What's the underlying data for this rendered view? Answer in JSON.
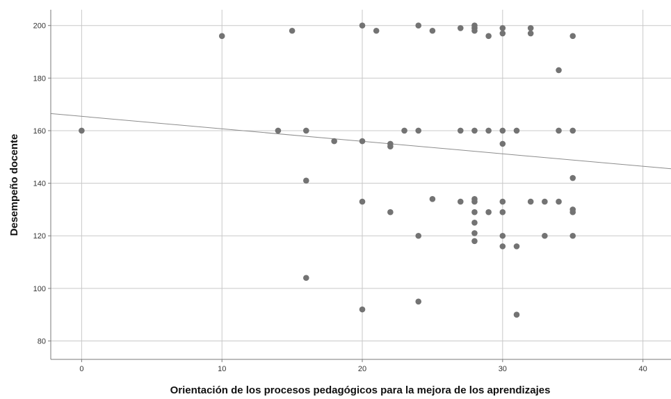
{
  "chart_data": {
    "type": "scatter",
    "title": "",
    "xlabel": "Orientación de los procesos pedagógicos para la mejora de los aprendizajes",
    "ylabel": "Desempeño docente",
    "xlim": [
      -2.2,
      42
    ],
    "ylim": [
      73,
      206
    ],
    "xticks": [
      0,
      10,
      20,
      30,
      40
    ],
    "yticks": [
      80,
      100,
      120,
      140,
      160,
      180,
      200
    ],
    "grid": true,
    "legend": "none",
    "colors": {
      "point": "#737373",
      "grid": "#c8c8c8",
      "line": "#8c8c8c",
      "axis": "#7a7a7a"
    },
    "fit_line": {
      "x": [
        -2.2,
        42
      ],
      "y": [
        166.5,
        145.5
      ]
    },
    "points": [
      [
        0,
        160
      ],
      [
        10,
        196
      ],
      [
        14,
        160
      ],
      [
        15,
        198
      ],
      [
        16,
        160
      ],
      [
        16,
        141
      ],
      [
        16,
        104
      ],
      [
        18,
        156
      ],
      [
        20,
        200
      ],
      [
        20,
        156
      ],
      [
        20,
        133
      ],
      [
        20,
        92
      ],
      [
        21,
        198
      ],
      [
        22,
        155
      ],
      [
        22,
        154
      ],
      [
        22,
        129
      ],
      [
        23,
        160
      ],
      [
        24,
        200
      ],
      [
        24,
        160
      ],
      [
        24,
        120
      ],
      [
        24,
        95
      ],
      [
        25,
        198
      ],
      [
        25,
        134
      ],
      [
        27,
        199
      ],
      [
        27,
        160
      ],
      [
        27,
        133
      ],
      [
        28,
        200
      ],
      [
        28,
        199
      ],
      [
        28,
        198
      ],
      [
        28,
        160
      ],
      [
        28,
        134
      ],
      [
        28,
        133
      ],
      [
        28,
        129
      ],
      [
        28,
        125
      ],
      [
        28,
        121
      ],
      [
        28,
        118
      ],
      [
        29,
        196
      ],
      [
        29,
        160
      ],
      [
        29,
        129
      ],
      [
        30,
        199
      ],
      [
        30,
        197
      ],
      [
        30,
        160
      ],
      [
        30,
        155
      ],
      [
        30,
        133
      ],
      [
        30,
        129
      ],
      [
        30,
        120
      ],
      [
        30,
        116
      ],
      [
        31,
        160
      ],
      [
        31,
        116
      ],
      [
        31,
        90
      ],
      [
        32,
        199
      ],
      [
        32,
        197
      ],
      [
        32,
        133
      ],
      [
        33,
        133
      ],
      [
        33,
        120
      ],
      [
        34,
        183
      ],
      [
        34,
        160
      ],
      [
        34,
        133
      ],
      [
        35,
        196
      ],
      [
        35,
        160
      ],
      [
        35,
        142
      ],
      [
        35,
        130
      ],
      [
        35,
        129
      ],
      [
        35,
        120
      ]
    ]
  }
}
